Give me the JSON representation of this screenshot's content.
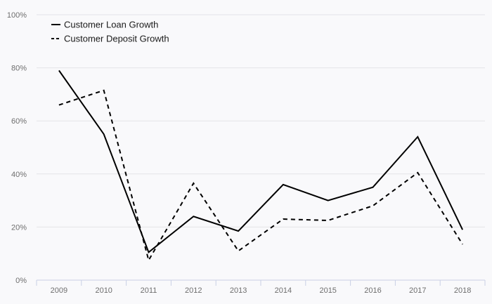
{
  "chart_data": {
    "type": "line",
    "title": "",
    "xlabel": "",
    "ylabel": "",
    "categories": [
      "2009",
      "2010",
      "2011",
      "2012",
      "2013",
      "2014",
      "2015",
      "2016",
      "2017",
      "2018"
    ],
    "ylim": [
      0,
      100
    ],
    "yticks": [
      0,
      20,
      40,
      60,
      80,
      100
    ],
    "ytick_labels": [
      "0%",
      "20%",
      "40%",
      "60%",
      "80%",
      "100%"
    ],
    "grid": true,
    "legend_position": "top-left",
    "series": [
      {
        "name": "Customer Loan Growth",
        "style": "solid",
        "color": "#000000",
        "values": [
          79,
          55,
          10.5,
          24,
          18.5,
          36,
          30,
          35,
          54,
          19
        ]
      },
      {
        "name": "Customer Deposit Growth",
        "style": "dashed",
        "color": "#000000",
        "values": [
          66,
          71.5,
          7.5,
          36.5,
          11,
          23,
          22.5,
          28,
          40.5,
          13.5
        ]
      }
    ]
  }
}
